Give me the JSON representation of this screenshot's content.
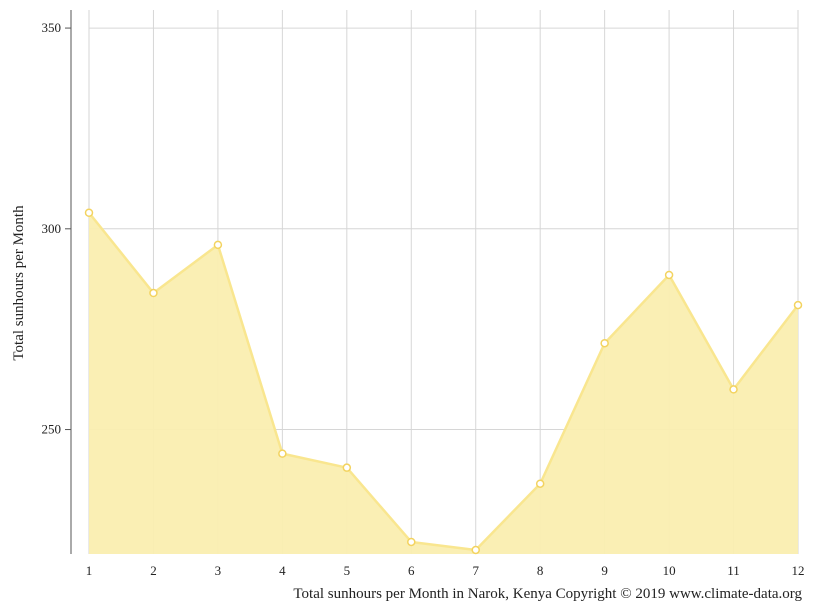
{
  "chart_data": {
    "type": "area",
    "x": [
      1,
      2,
      3,
      4,
      5,
      6,
      7,
      8,
      9,
      10,
      11,
      12
    ],
    "x_tick_labels": [
      "1",
      "2",
      "3",
      "4",
      "5",
      "6",
      "7",
      "8",
      "9",
      "10",
      "11",
      "12"
    ],
    "values": [
      304,
      284,
      296,
      244,
      240.5,
      222,
      220,
      236.5,
      271.5,
      288.5,
      260,
      281
    ],
    "ylabel": "Total sunhours per Month",
    "caption": "Total sunhours per Month in Narok, Kenya Copyright © 2019 www.climate-data.org",
    "y_ticks": [
      250,
      300,
      350
    ],
    "y_tick_labels": [
      "250",
      "300",
      "350"
    ],
    "ylim": [
      219,
      354.5
    ],
    "xlim": [
      1,
      12
    ],
    "grid": true,
    "colors": {
      "fill": "#faeeb0",
      "line": "#f9e68f",
      "marker_stroke": "#f3d35f",
      "marker_fill": "#ffffff",
      "grid": "#d6d6d6",
      "axis": "#555555",
      "text": "#222222"
    }
  }
}
